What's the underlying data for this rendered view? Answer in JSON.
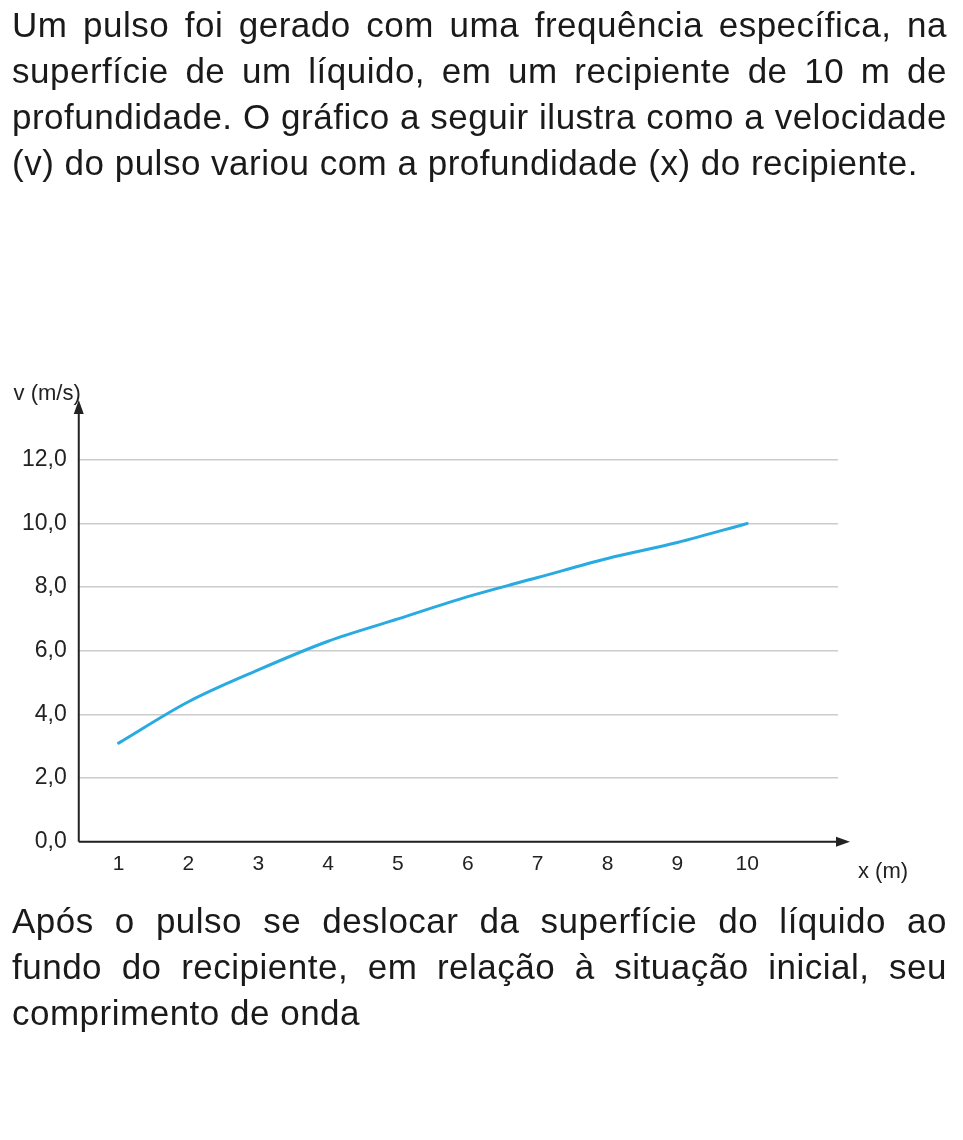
{
  "chart_data": {
    "type": "line",
    "title": "Um pulso foi gerado com uma frequência específica, na superfície de um líquido, em um recipiente de 10 m de profundidade. O gráfico a seguir ilustra como a velocidade (v) do pulso variou com a profundidade (x) do recipiente.",
    "annotations": [
      "Após o pulso se deslocar da superfície do líquido ao fundo do recipiente, em relação à situação inicial, seu comprimento de onda"
    ],
    "xlabel": "x (m)",
    "ylabel": "v (m/s)",
    "x": [
      1,
      2,
      3,
      4,
      5,
      6,
      7,
      8,
      9,
      10
    ],
    "series": [
      {
        "color": "#29abe2",
        "values": [
          3.1,
          4.4,
          5.4,
          6.3,
          7.0,
          7.7,
          8.3,
          8.9,
          9.4,
          10.0
        ]
      }
    ],
    "xlim": [
      0.43,
      11.3
    ],
    "xticks": [
      1,
      2,
      3,
      4,
      5,
      6,
      7,
      8,
      9,
      10
    ],
    "ylim": [
      0,
      13.5
    ],
    "yticks": [
      {
        "value": 0,
        "label": "0,0"
      },
      {
        "value": 2,
        "label": "2,0"
      },
      {
        "value": 4,
        "label": "4,0"
      },
      {
        "value": 6,
        "label": "6,0"
      },
      {
        "value": 8,
        "label": "8,0"
      },
      {
        "value": 10,
        "label": "10,0"
      },
      {
        "value": 12,
        "label": "12,0"
      }
    ],
    "grid": "y",
    "legend": false,
    "marker": "none",
    "line_style": "solid"
  }
}
